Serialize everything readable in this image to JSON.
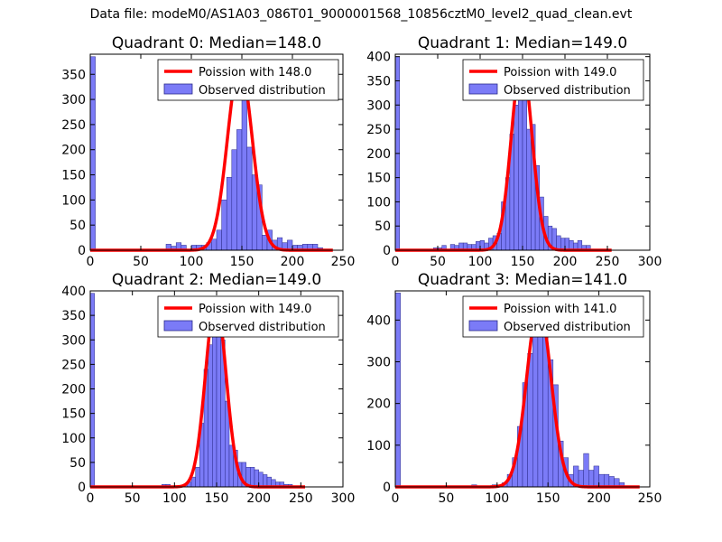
{
  "figure_title": "Data file: modeM0/AS1A03_086T01_9000001568_10856cztM0_level2_quad_clean.evt",
  "colors": {
    "hist_fill": "#7b7bf7",
    "hist_edge": "#2a2a8a",
    "fit_line": "#ff0000"
  },
  "legend_labels": {
    "observed": "Observed distribution"
  },
  "chart_data": [
    {
      "type": "bar",
      "title": "Quadrant 0: Median=148.0",
      "median": 148.0,
      "fit_label": "Poission with 148.0",
      "xlim": [
        0,
        250
      ],
      "ylim": [
        0,
        390
      ],
      "xticks": [
        0,
        50,
        100,
        150,
        200,
        250
      ],
      "yticks": [
        0,
        50,
        100,
        150,
        200,
        250,
        300,
        350
      ],
      "bin_width": 5,
      "bins": [
        [
          0,
          385
        ],
        [
          75,
          12
        ],
        [
          80,
          8
        ],
        [
          85,
          15
        ],
        [
          90,
          10
        ],
        [
          100,
          10
        ],
        [
          105,
          10
        ],
        [
          110,
          10
        ],
        [
          115,
          15
        ],
        [
          120,
          22
        ],
        [
          125,
          40
        ],
        [
          130,
          100
        ],
        [
          135,
          145
        ],
        [
          140,
          200
        ],
        [
          145,
          240
        ],
        [
          150,
          300
        ],
        [
          155,
          205
        ],
        [
          160,
          150
        ],
        [
          165,
          130
        ],
        [
          170,
          30
        ],
        [
          175,
          40
        ],
        [
          180,
          20
        ],
        [
          185,
          25
        ],
        [
          190,
          15
        ],
        [
          195,
          20
        ],
        [
          200,
          10
        ],
        [
          205,
          10
        ],
        [
          210,
          12
        ],
        [
          215,
          12
        ],
        [
          220,
          12
        ],
        [
          225,
          5
        ]
      ],
      "fit_peak": 370,
      "fit_xrange": [
        0,
        240
      ]
    },
    {
      "type": "bar",
      "title": "Quadrant 1: Median=149.0",
      "median": 149.0,
      "fit_label": "Poission with 149.0",
      "xlim": [
        0,
        300
      ],
      "ylim": [
        0,
        405
      ],
      "xticks": [
        0,
        50,
        100,
        150,
        200,
        250,
        300
      ],
      "yticks": [
        0,
        50,
        100,
        150,
        200,
        250,
        300,
        350,
        400
      ],
      "bin_width": 5,
      "bins": [
        [
          0,
          400
        ],
        [
          45,
          5
        ],
        [
          50,
          5
        ],
        [
          55,
          10
        ],
        [
          65,
          12
        ],
        [
          70,
          10
        ],
        [
          75,
          15
        ],
        [
          80,
          15
        ],
        [
          85,
          12
        ],
        [
          90,
          12
        ],
        [
          95,
          18
        ],
        [
          100,
          20
        ],
        [
          105,
          15
        ],
        [
          110,
          25
        ],
        [
          115,
          30
        ],
        [
          120,
          35
        ],
        [
          125,
          100
        ],
        [
          130,
          150
        ],
        [
          135,
          240
        ],
        [
          140,
          300
        ],
        [
          145,
          385
        ],
        [
          150,
          310
        ],
        [
          155,
          250
        ],
        [
          160,
          260
        ],
        [
          165,
          175
        ],
        [
          170,
          110
        ],
        [
          175,
          70
        ],
        [
          180,
          50
        ],
        [
          185,
          45
        ],
        [
          190,
          30
        ],
        [
          195,
          25
        ],
        [
          200,
          25
        ],
        [
          205,
          20
        ],
        [
          210,
          15
        ],
        [
          215,
          20
        ],
        [
          220,
          10
        ],
        [
          225,
          10
        ]
      ],
      "fit_peak": 390,
      "fit_xrange": [
        0,
        255
      ]
    },
    {
      "type": "bar",
      "title": "Quadrant 2: Median=149.0",
      "median": 149.0,
      "fit_label": "Poission with 149.0",
      "xlim": [
        0,
        300
      ],
      "ylim": [
        0,
        400
      ],
      "xticks": [
        0,
        50,
        100,
        150,
        200,
        250,
        300
      ],
      "yticks": [
        0,
        50,
        100,
        150,
        200,
        250,
        300,
        350,
        400
      ],
      "bin_width": 5,
      "bins": [
        [
          0,
          395
        ],
        [
          85,
          5
        ],
        [
          90,
          5
        ],
        [
          110,
          5
        ],
        [
          115,
          10
        ],
        [
          120,
          20
        ],
        [
          125,
          40
        ],
        [
          130,
          130
        ],
        [
          135,
          240
        ],
        [
          140,
          290
        ],
        [
          145,
          380
        ],
        [
          150,
          350
        ],
        [
          155,
          300
        ],
        [
          160,
          175
        ],
        [
          165,
          85
        ],
        [
          170,
          75
        ],
        [
          175,
          50
        ],
        [
          180,
          50
        ],
        [
          185,
          40
        ],
        [
          190,
          40
        ],
        [
          195,
          35
        ],
        [
          200,
          30
        ],
        [
          205,
          25
        ],
        [
          210,
          20
        ],
        [
          215,
          15
        ],
        [
          220,
          10
        ],
        [
          225,
          10
        ],
        [
          230,
          5
        ],
        [
          235,
          5
        ]
      ],
      "fit_peak": 380,
      "fit_xrange": [
        0,
        255
      ]
    },
    {
      "type": "bar",
      "title": "Quadrant 3: Median=141.0",
      "median": 141.0,
      "fit_label": "Poission with 141.0",
      "xlim": [
        0,
        250
      ],
      "ylim": [
        0,
        470
      ],
      "xticks": [
        0,
        50,
        100,
        150,
        200,
        250
      ],
      "yticks": [
        0,
        100,
        200,
        300,
        400
      ],
      "bin_width": 5,
      "bins": [
        [
          0,
          465
        ],
        [
          75,
          5
        ],
        [
          95,
          5
        ],
        [
          100,
          5
        ],
        [
          105,
          10
        ],
        [
          110,
          30
        ],
        [
          115,
          70
        ],
        [
          120,
          145
        ],
        [
          125,
          250
        ],
        [
          130,
          320
        ],
        [
          135,
          390
        ],
        [
          140,
          430
        ],
        [
          145,
          360
        ],
        [
          150,
          305
        ],
        [
          155,
          245
        ],
        [
          160,
          110
        ],
        [
          165,
          70
        ],
        [
          170,
          30
        ],
        [
          175,
          50
        ],
        [
          180,
          40
        ],
        [
          185,
          80
        ],
        [
          190,
          40
        ],
        [
          195,
          50
        ],
        [
          200,
          30
        ],
        [
          205,
          30
        ],
        [
          210,
          25
        ],
        [
          215,
          20
        ],
        [
          220,
          10
        ]
      ],
      "fit_peak": 435,
      "fit_xrange": [
        0,
        240
      ]
    }
  ]
}
